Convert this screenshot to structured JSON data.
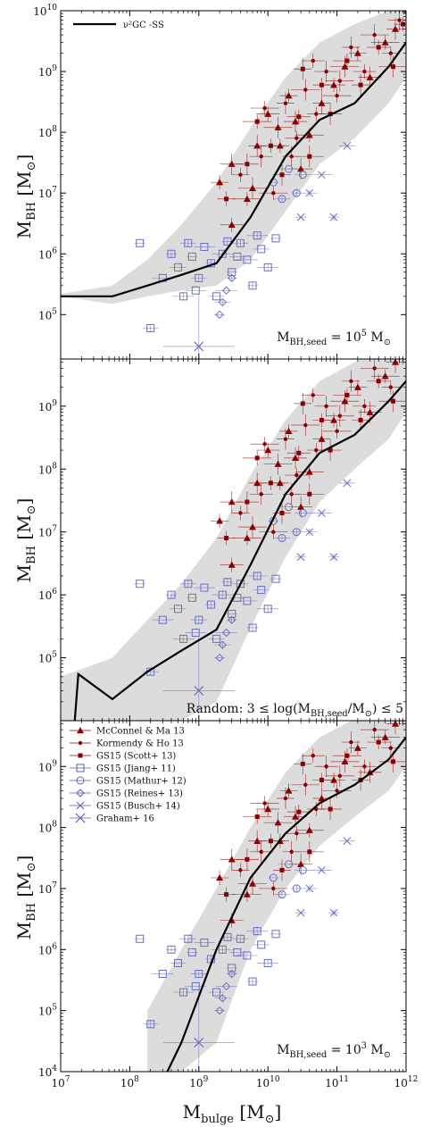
{
  "chart_data": [
    {
      "type": "scatter",
      "panel": "top",
      "xlabel": "M_bulge [M_⊙]",
      "ylabel": "M_BH [M_⊙]",
      "xscale": "log",
      "yscale": "log",
      "xlim": [
        10000000.0,
        1000000000000.0
      ],
      "ylim": [
        10000.0,
        10000000000.0
      ],
      "ytick_labels": [
        "10^5",
        "10^6",
        "10^7",
        "10^8",
        "10^9",
        "10^10"
      ],
      "annotation": "M_BH,seed = 10^5 M_⊙",
      "legend": [
        {
          "label": "ν²GC -SS",
          "style": "line"
        }
      ],
      "legend_position": "top-left",
      "series": [
        {
          "name": "ν²GC -SS",
          "kind": "model-median",
          "x": [
            10000000.0,
            56000000.0,
            180000000.0,
            560000000.0,
            1800000000.0,
            5600000000.0,
            18000000000.0,
            56000000000.0,
            180000000000.0,
            560000000000.0,
            1000000000000.0
          ],
          "y": [
            200000.0,
            200000.0,
            300000.0,
            450000.0,
            700000.0,
            4000000.0,
            40000000.0,
            160000000.0,
            300000000.0,
            1200000000.0,
            3000000000.0
          ]
        },
        {
          "kind": "model-scatter-band",
          "x": [
            10000000.0,
            56000000.0,
            180000000.0,
            560000000.0,
            1800000000.0,
            5600000000.0,
            18000000000.0,
            56000000000.0,
            180000000000.0,
            560000000000.0,
            1000000000000.0
          ],
          "y_low": [
            200000.0,
            150000.0,
            200000.0,
            250000.0,
            300000.0,
            800000.0,
            5000000.0,
            30000000.0,
            80000000.0,
            300000000.0,
            800000000.0
          ],
          "y_high": [
            220000.0,
            300000.0,
            800000.0,
            3000000.0,
            15000000.0,
            120000000.0,
            800000000.0,
            3000000000.0,
            6000000000.0,
            10000000000.0,
            10000000000.0
          ]
        }
      ]
    },
    {
      "type": "scatter",
      "panel": "middle",
      "xlabel": "M_bulge [M_⊙]",
      "ylabel": "M_BH [M_⊙]",
      "xscale": "log",
      "yscale": "log",
      "xlim": [
        10000000.0,
        1000000000000.0
      ],
      "ylim": [
        10000.0,
        10000000000.0
      ],
      "ytick_labels": [
        "10^5",
        "10^6",
        "10^7",
        "10^8",
        "10^9"
      ],
      "annotation": "Random: 3 ≤ log(M_BH,seed/M_⊙) ≤ 5",
      "series": [
        {
          "name": "ν²GC -SS",
          "kind": "model-median",
          "x": [
            16000000.0,
            18000000.0,
            56000000.0,
            180000000.0,
            560000000.0,
            1800000000.0,
            5600000000.0,
            18000000000.0,
            56000000000.0,
            180000000000.0,
            560000000000.0,
            1000000000000.0
          ],
          "y": [
            10000.0,
            55000.0,
            22000.0,
            60000.0,
            130000.0,
            280000.0,
            3000000.0,
            40000000.0,
            180000000.0,
            350000000.0,
            1200000000.0,
            2500000000.0
          ]
        },
        {
          "kind": "model-scatter-band",
          "x": [
            10000000.0,
            56000000.0,
            180000000.0,
            560000000.0,
            1800000000.0,
            5600000000.0,
            18000000000.0,
            56000000000.0,
            180000000000.0,
            560000000000.0,
            1000000000000.0
          ],
          "y_low": [
            10000.0,
            10000.0,
            10000.0,
            10000.0,
            20000.0,
            300000.0,
            4000000.0,
            30000000.0,
            100000000.0,
            300000000.0,
            800000000.0
          ],
          "y_high": [
            50000.0,
            100000.0,
            400000.0,
            1500000.0,
            8000000.0,
            80000000.0,
            600000000.0,
            2500000000.0,
            5000000000.0,
            10000000000.0,
            10000000000.0
          ]
        }
      ]
    },
    {
      "type": "scatter",
      "panel": "bottom",
      "xlabel": "M_bulge [M_⊙]",
      "ylabel": "M_BH [M_⊙]",
      "xscale": "log",
      "yscale": "log",
      "xlim": [
        10000000.0,
        1000000000000.0
      ],
      "ylim": [
        10000.0,
        10000000000.0
      ],
      "xtick_labels": [
        "10^7",
        "10^8",
        "10^9",
        "10^10",
        "10^11",
        "10^12"
      ],
      "ytick_labels": [
        "10^4",
        "10^5",
        "10^6",
        "10^7",
        "10^8",
        "10^9"
      ],
      "annotation": "M_BH,seed = 10^3 M_⊙",
      "legend_position": "top-left",
      "legend": [
        {
          "label": "McConnel & Ma 13",
          "marker": "triangle",
          "color": "#8b0000"
        },
        {
          "label": "Kormendy & Ho 13",
          "marker": "dot",
          "color": "#8b0000"
        },
        {
          "label": "GS15 (Scott+ 13)",
          "marker": "square-filled",
          "color": "#8b0000"
        },
        {
          "label": "GS15 (Jiang+ 11)",
          "marker": "square-open",
          "color": "#5b5fb5"
        },
        {
          "label": "GS15 (Mathur+ 12)",
          "marker": "circle-open",
          "color": "#5b5fb5"
        },
        {
          "label": "GS15 (Reines+ 13)",
          "marker": "diamond-open",
          "color": "#5b5fb5"
        },
        {
          "label": "GS15 (Busch+ 14)",
          "marker": "x",
          "color": "#5b5fb5"
        },
        {
          "label": "Graham+ 16",
          "marker": "star",
          "color": "#5b5fb5"
        }
      ],
      "series": [
        {
          "name": "ν²GC -SS",
          "kind": "model-median",
          "x": [
            350000000.0,
            560000000.0,
            1800000000.0,
            5600000000.0,
            18000000000.0,
            56000000000.0,
            180000000000.0,
            560000000000.0,
            1000000000000.0
          ],
          "y": [
            10000.0,
            30000.0,
            1000000.0,
            15000000.0,
            80000000.0,
            250000000.0,
            500000000.0,
            1300000000.0,
            3000000000.0
          ]
        },
        {
          "kind": "model-scatter-band",
          "x": [
            180000000.0,
            560000000.0,
            1800000000.0,
            5600000000.0,
            18000000000.0,
            56000000000.0,
            180000000000.0,
            560000000000.0,
            1000000000000.0
          ],
          "y_low": [
            10000.0,
            10000.0,
            30000.0,
            1000000.0,
            10000000.0,
            50000000.0,
            150000000.0,
            400000000.0,
            1000000000.0
          ],
          "y_high": [
            100000.0,
            1000000.0,
            10000000.0,
            100000000.0,
            800000000.0,
            3000000000.0,
            6000000000.0,
            10000000000.0,
            10000000000.0
          ]
        }
      ]
    }
  ],
  "observations": {
    "red_triangle": [
      [
        2000000000.0,
        15000000.0
      ],
      [
        3000000000.0,
        30000000.0
      ],
      [
        5000000000.0,
        8000000.0
      ],
      [
        7000000000.0,
        60000000.0
      ],
      [
        10000000000.0,
        200000000.0
      ],
      [
        14000000000.0,
        120000000.0
      ],
      [
        20000000000.0,
        400000000.0
      ],
      [
        30000000000.0,
        25000000.0
      ],
      [
        40000000000.0,
        90000000.0
      ],
      [
        60000000000.0,
        300000000.0
      ],
      [
        90000000000.0,
        600000000.0
      ],
      [
        130000000000.0,
        1200000000.0
      ],
      [
        200000000000.0,
        2000000000.0
      ],
      [
        300000000000.0,
        800000000.0
      ],
      [
        500000000000.0,
        3000000000.0
      ],
      [
        700000000000.0,
        5000000000.0
      ],
      [
        3000000000.0,
        3000000.0
      ],
      [
        6000000000.0,
        12000000.0
      ],
      [
        15000000000.0,
        60000000.0
      ],
      [
        25000000000.0,
        150000000.0
      ]
    ],
    "red_dot": [
      [
        4000000000.0,
        20000000.0
      ],
      [
        8000000000.0,
        40000000.0
      ],
      [
        12000000000.0,
        10000000.0
      ],
      [
        18000000000.0,
        300000000.0
      ],
      [
        26000000000.0,
        80000000.0
      ],
      [
        35000000000.0,
        500000000.0
      ],
      [
        50000000000.0,
        200000000.0
      ],
      [
        70000000000.0,
        1000000000.0
      ],
      [
        100000000000.0,
        400000000.0
      ],
      [
        160000000000.0,
        2500000000.0
      ],
      [
        250000000000.0,
        1000000000.0
      ],
      [
        350000000000.0,
        4000000000.0
      ],
      [
        600000000000.0,
        2000000000.0
      ],
      [
        800000000000.0,
        7000000000.0
      ],
      [
        9000000000.0,
        250000000.0
      ],
      [
        22000000000.0,
        40000000.0
      ],
      [
        45000000000.0,
        1500000000.0
      ],
      [
        110000000000.0,
        700000000.0
      ]
    ],
    "red_square": [
      [
        2500000000.0,
        8000000.0
      ],
      [
        5000000000.0,
        30000000.0
      ],
      [
        11000000000.0,
        60000000.0
      ],
      [
        16000000000.0,
        20000000.0
      ],
      [
        28000000000.0,
        180000000.0
      ],
      [
        40000000000.0,
        40000000.0
      ],
      [
        60000000000.0,
        600000000.0
      ],
      [
        80000000000.0,
        200000000.0
      ],
      [
        140000000000.0,
        1500000000.0
      ],
      [
        220000000000.0,
        600000000.0
      ],
      [
        400000000000.0,
        2500000000.0
      ],
      [
        650000000000.0,
        1200000000.0
      ],
      [
        900000000000.0,
        6000000000.0
      ],
      [
        1000000000000.0,
        10000000000.0
      ],
      [
        7000000000.0,
        150000000.0
      ],
      [
        32000000000.0,
        1100000000.0
      ]
    ],
    "blue_square": [
      [
        140000000.0,
        1500000.0
      ],
      [
        200000000.0,
        60000.0
      ],
      [
        300000000.0,
        400000.0
      ],
      [
        400000000.0,
        1000000.0
      ],
      [
        500000000.0,
        600000.0
      ],
      [
        600000000.0,
        200000.0
      ],
      [
        800000000.0,
        900000.0
      ],
      [
        1000000000.0,
        400000.0
      ],
      [
        1200000000.0,
        1300000.0
      ],
      [
        1500000000.0,
        700000.0
      ],
      [
        1800000000.0,
        200000.0
      ],
      [
        2200000000.0,
        1000000.0
      ],
      [
        3000000000.0,
        500000.0
      ],
      [
        4000000000.0,
        1500000.0
      ],
      [
        5000000000.0,
        800000.0
      ],
      [
        6000000000.0,
        300000.0
      ],
      [
        8000000000.0,
        1200000.0
      ],
      [
        10000000000.0,
        600000.0
      ],
      [
        13000000000.0,
        1800000.0
      ],
      [
        700000000.0,
        1500000.0
      ],
      [
        900000000.0,
        250000.0
      ],
      [
        2600000000.0,
        1600000.0
      ],
      [
        3600000000.0,
        900000.0
      ],
      [
        7000000000.0,
        2000000.0
      ]
    ],
    "blue_circle": [
      [
        12000000000.0,
        15000000.0
      ],
      [
        16000000000.0,
        8000000.0
      ],
      [
        20000000000.0,
        25000000.0
      ],
      [
        26000000000.0,
        10000000.0
      ],
      [
        32000000000.0,
        20000000.0
      ]
    ],
    "blue_diamond": [
      [
        2000000000.0,
        100000.0
      ],
      [
        2200000000.0,
        160000.0
      ],
      [
        2500000000.0,
        250000.0
      ],
      [
        3000000000.0,
        400000.0
      ]
    ],
    "blue_x": [
      [
        30000000000.0,
        4000000.0
      ],
      [
        40000000000.0,
        10000000.0
      ],
      [
        60000000000.0,
        20000000.0
      ],
      [
        90000000000.0,
        4000000.0
      ],
      [
        140000000000.0,
        60000000.0
      ]
    ],
    "graham16": [
      [
        1000000000.0,
        30000.0
      ]
    ]
  }
}
